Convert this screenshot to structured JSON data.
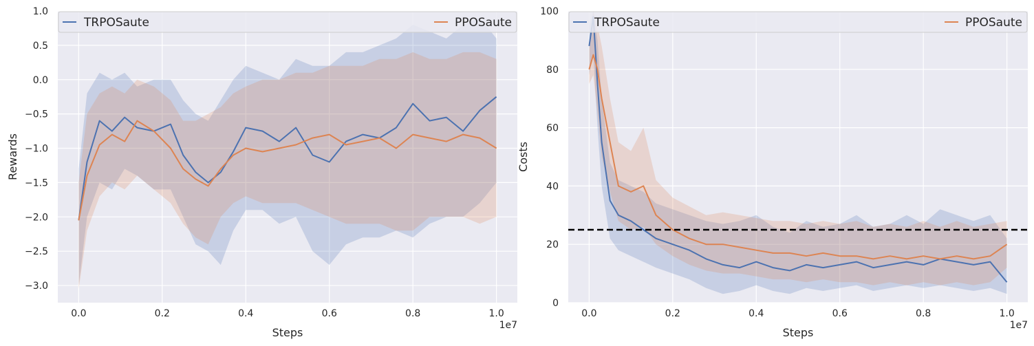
{
  "chart_data": [
    {
      "type": "line",
      "xlabel": "Steps",
      "ylabel": "Rewards",
      "x_offset_label": "1e7",
      "xlim": [
        -0.05,
        1.05
      ],
      "ylim": [
        -3.25,
        1.0
      ],
      "x_ticks": [
        0.0,
        0.2,
        0.4,
        0.6,
        0.8,
        1.0
      ],
      "x_tick_labels": [
        "0.0",
        "0.2",
        "0.4",
        "0.6",
        "0.8",
        "1.0"
      ],
      "y_ticks": [
        -3.0,
        -2.5,
        -2.0,
        -1.5,
        -1.0,
        -0.5,
        0.0,
        0.5,
        1.0
      ],
      "y_tick_labels": [
        "−3.0",
        "−2.5",
        "−2.0",
        "−1.5",
        "−1.0",
        "−0.5",
        "0.0",
        "0.5",
        "1.0"
      ],
      "grid": true,
      "legend": "top, spanning width",
      "shaded_band": "min/max across seeds",
      "series": [
        {
          "name": "TRPOSaute",
          "color": "#4c72b0",
          "x": [
            0.0,
            0.02,
            0.05,
            0.08,
            0.11,
            0.14,
            0.18,
            0.22,
            0.25,
            0.28,
            0.31,
            0.34,
            0.37,
            0.4,
            0.44,
            0.48,
            0.52,
            0.56,
            0.6,
            0.64,
            0.68,
            0.72,
            0.76,
            0.8,
            0.84,
            0.88,
            0.92,
            0.96,
            1.0
          ],
          "y": [
            -2.05,
            -1.2,
            -0.6,
            -0.75,
            -0.55,
            -0.7,
            -0.75,
            -0.65,
            -1.1,
            -1.35,
            -1.5,
            -1.35,
            -1.05,
            -0.7,
            -0.75,
            -0.9,
            -0.7,
            -1.1,
            -1.2,
            -0.9,
            -0.8,
            -0.85,
            -0.7,
            -0.35,
            -0.6,
            -0.55,
            -0.75,
            -0.45,
            -0.25
          ],
          "lower": [
            -3.0,
            -2.0,
            -1.5,
            -1.6,
            -1.3,
            -1.4,
            -1.6,
            -1.6,
            -2.0,
            -2.4,
            -2.5,
            -2.7,
            -2.2,
            -1.9,
            -1.9,
            -2.1,
            -2.0,
            -2.5,
            -2.7,
            -2.4,
            -2.3,
            -2.3,
            -2.2,
            -2.3,
            -2.1,
            -2.0,
            -2.0,
            -1.8,
            -1.5
          ],
          "upper": [
            -1.3,
            -0.2,
            0.1,
            0.0,
            0.1,
            -0.1,
            0.0,
            0.0,
            -0.3,
            -0.5,
            -0.6,
            -0.3,
            0.0,
            0.2,
            0.1,
            0.0,
            0.3,
            0.2,
            0.2,
            0.4,
            0.4,
            0.5,
            0.6,
            0.8,
            0.7,
            0.6,
            0.8,
            0.9,
            0.6
          ]
        },
        {
          "name": "PPOSaute",
          "color": "#dd8452",
          "x": [
            0.0,
            0.02,
            0.05,
            0.08,
            0.11,
            0.14,
            0.18,
            0.22,
            0.25,
            0.28,
            0.31,
            0.34,
            0.37,
            0.4,
            0.44,
            0.48,
            0.52,
            0.56,
            0.6,
            0.64,
            0.68,
            0.72,
            0.76,
            0.8,
            0.84,
            0.88,
            0.92,
            0.96,
            1.0
          ],
          "y": [
            -2.05,
            -1.4,
            -0.95,
            -0.8,
            -0.9,
            -0.6,
            -0.75,
            -1.0,
            -1.3,
            -1.45,
            -1.55,
            -1.3,
            -1.1,
            -1.0,
            -1.05,
            -1.0,
            -0.95,
            -0.85,
            -0.8,
            -0.95,
            -0.9,
            -0.85,
            -1.0,
            -0.8,
            -0.85,
            -0.9,
            -0.8,
            -0.85,
            -1.0
          ],
          "lower": [
            -3.05,
            -2.2,
            -1.7,
            -1.5,
            -1.6,
            -1.4,
            -1.6,
            -1.8,
            -2.1,
            -2.3,
            -2.4,
            -2.0,
            -1.8,
            -1.7,
            -1.8,
            -1.8,
            -1.8,
            -1.9,
            -2.0,
            -2.1,
            -2.1,
            -2.1,
            -2.2,
            -2.2,
            -2.0,
            -2.0,
            -2.0,
            -2.1,
            -2.0
          ],
          "upper": [
            -1.5,
            -0.5,
            -0.2,
            -0.1,
            -0.2,
            0.0,
            -0.1,
            -0.3,
            -0.6,
            -0.6,
            -0.5,
            -0.4,
            -0.2,
            -0.1,
            0.0,
            0.0,
            0.1,
            0.1,
            0.2,
            0.2,
            0.2,
            0.3,
            0.3,
            0.4,
            0.3,
            0.3,
            0.4,
            0.4,
            0.3
          ]
        }
      ]
    },
    {
      "type": "line",
      "xlabel": "Steps",
      "ylabel": "Costs",
      "x_offset_label": "1e7",
      "xlim": [
        -0.05,
        1.05
      ],
      "ylim": [
        0,
        100
      ],
      "x_ticks": [
        0.0,
        0.2,
        0.4,
        0.6,
        0.8,
        1.0
      ],
      "x_tick_labels": [
        "0.0",
        "0.2",
        "0.4",
        "0.6",
        "0.8",
        "1.0"
      ],
      "y_ticks": [
        0,
        20,
        40,
        60,
        80,
        100
      ],
      "y_tick_labels": [
        "0",
        "20",
        "40",
        "60",
        "80",
        "100"
      ],
      "grid": true,
      "legend": "top, spanning width",
      "threshold": 25,
      "threshold_color": "#000000",
      "shaded_band": "min/max across seeds",
      "series": [
        {
          "name": "TRPOSaute",
          "color": "#4c72b0",
          "x": [
            0.0,
            0.01,
            0.02,
            0.03,
            0.05,
            0.07,
            0.1,
            0.13,
            0.16,
            0.2,
            0.24,
            0.28,
            0.32,
            0.36,
            0.4,
            0.44,
            0.48,
            0.52,
            0.56,
            0.6,
            0.64,
            0.68,
            0.72,
            0.76,
            0.8,
            0.84,
            0.88,
            0.92,
            0.96,
            1.0
          ],
          "y": [
            88,
            98,
            75,
            55,
            35,
            30,
            28,
            25,
            22,
            20,
            18,
            15,
            13,
            12,
            14,
            12,
            11,
            13,
            12,
            13,
            14,
            12,
            13,
            14,
            13,
            15,
            14,
            13,
            14,
            7
          ],
          "lower": [
            78,
            85,
            60,
            40,
            22,
            18,
            16,
            14,
            12,
            10,
            8,
            5,
            3,
            4,
            6,
            4,
            3,
            5,
            4,
            5,
            6,
            4,
            5,
            6,
            5,
            6,
            5,
            4,
            5,
            3
          ],
          "upper": [
            95,
            100,
            90,
            70,
            48,
            42,
            40,
            38,
            34,
            32,
            30,
            28,
            27,
            28,
            30,
            26,
            24,
            28,
            26,
            27,
            30,
            26,
            27,
            30,
            27,
            32,
            30,
            28,
            30,
            22
          ]
        },
        {
          "name": "PPOSaute",
          "color": "#dd8452",
          "x": [
            0.0,
            0.01,
            0.02,
            0.03,
            0.05,
            0.07,
            0.1,
            0.13,
            0.16,
            0.2,
            0.24,
            0.28,
            0.32,
            0.36,
            0.4,
            0.44,
            0.48,
            0.52,
            0.56,
            0.6,
            0.64,
            0.68,
            0.72,
            0.76,
            0.8,
            0.84,
            0.88,
            0.92,
            0.96,
            1.0
          ],
          "y": [
            80,
            85,
            80,
            70,
            55,
            40,
            38,
            40,
            30,
            25,
            22,
            20,
            20,
            19,
            18,
            17,
            17,
            16,
            17,
            16,
            16,
            15,
            16,
            15,
            16,
            15,
            16,
            15,
            16,
            20
          ],
          "lower": [
            75,
            78,
            65,
            50,
            38,
            28,
            25,
            26,
            20,
            16,
            13,
            11,
            10,
            10,
            9,
            8,
            8,
            7,
            8,
            7,
            7,
            6,
            7,
            6,
            7,
            6,
            7,
            6,
            7,
            12
          ],
          "upper": [
            88,
            100,
            95,
            88,
            70,
            55,
            52,
            60,
            42,
            36,
            33,
            30,
            31,
            30,
            29,
            28,
            28,
            27,
            28,
            27,
            28,
            26,
            27,
            26,
            28,
            26,
            28,
            26,
            27,
            28
          ]
        }
      ]
    }
  ]
}
